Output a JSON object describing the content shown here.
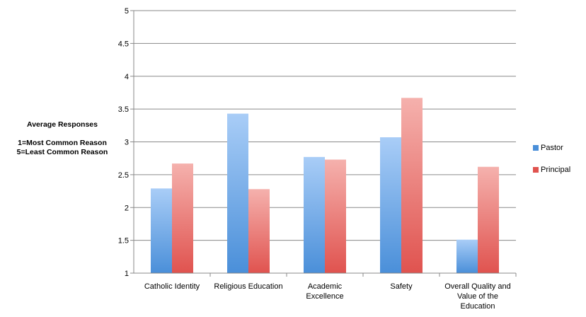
{
  "chart_data": {
    "type": "bar",
    "categories": [
      [
        "Catholic Identity"
      ],
      [
        "Religious Education"
      ],
      [
        "Academic",
        "Excellence"
      ],
      [
        "Safety"
      ],
      [
        "Overall Quality and",
        "Value of the",
        "Education"
      ]
    ],
    "series": [
      {
        "name": "Pastor",
        "values": [
          2.29,
          3.43,
          2.77,
          3.07,
          1.51
        ],
        "color_top": "#a9cdf7",
        "color_bottom": "#4a8fd9"
      },
      {
        "name": "Principal",
        "values": [
          2.67,
          2.28,
          2.73,
          3.67,
          2.62
        ],
        "color_top": "#f5b1ad",
        "color_bottom": "#e0534f"
      }
    ],
    "ylim": [
      1,
      5
    ],
    "yticks": [
      "1",
      "1.5",
      "2",
      "2.5",
      "3",
      "3.5",
      "4",
      "4.5",
      "5"
    ],
    "ylabel": {
      "title": "Average Responses",
      "line1": "1=Most Common Reason",
      "line2": "5=Least Common Reason"
    },
    "grid": true,
    "legend_position": "right"
  }
}
